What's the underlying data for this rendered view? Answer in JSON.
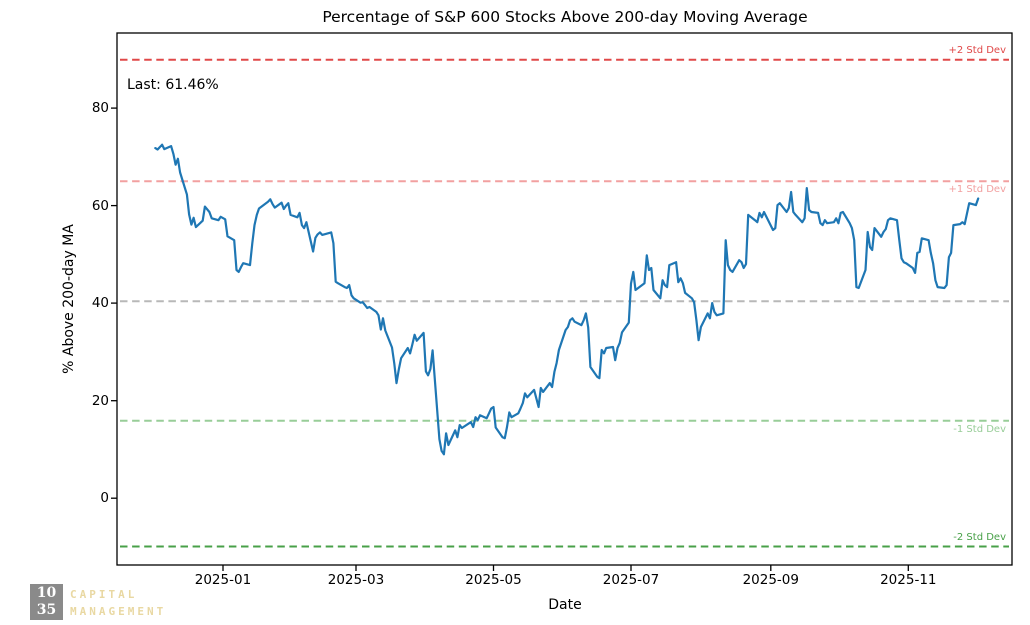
{
  "annotations": {
    "last_label": "Last: 61.46%"
  },
  "logo": {
    "box_line1": "10",
    "box_line2": "35",
    "line1": "CAPITAL",
    "line2": "MANAGEMENT",
    "box_color": "#8a8a8a",
    "text_color": "#e9d8a2"
  },
  "chart_data": {
    "type": "line",
    "title": "Percentage of S&P 600 Stocks Above 200-day Moving Average",
    "xlabel": "Date",
    "ylabel": "% Above 200-day MA",
    "grid": false,
    "legend": "none",
    "line_color": "#1f77b4",
    "last_value": 61.46,
    "xlim": [
      "2024-11-15",
      "2025-12-17"
    ],
    "ylim": [
      -13.7,
      95.4
    ],
    "x_ticks": [
      {
        "label": "2025-01",
        "date": "2025-01-01"
      },
      {
        "label": "2025-03",
        "date": "2025-03-01"
      },
      {
        "label": "2025-05",
        "date": "2025-05-01"
      },
      {
        "label": "2025-07",
        "date": "2025-07-01"
      },
      {
        "label": "2025-09",
        "date": "2025-09-01"
      },
      {
        "label": "2025-11",
        "date": "2025-11-01"
      }
    ],
    "y_ticks": [
      0,
      20,
      40,
      60,
      80
    ],
    "std_lines": [
      {
        "label": "+2 Std Dev",
        "value": 89.9,
        "color": "#e04848",
        "label_side": "above"
      },
      {
        "label": "+1 Std Dev",
        "value": 65.0,
        "color": "#f2a0a0",
        "label_side": "below"
      },
      {
        "label": "",
        "value": 40.4,
        "color": "#b8b8b8",
        "label_side": "none"
      },
      {
        "label": "-1 Std Dev",
        "value": 15.9,
        "color": "#98cd98",
        "label_side": "below"
      },
      {
        "label": "-2 Std Dev",
        "value": -9.9,
        "color": "#48a048",
        "label_side": "above"
      }
    ],
    "series": [
      {
        "name": "% Above 200-day MA",
        "points": [
          [
            "2024-12-02",
            71.8
          ],
          [
            "2024-12-03",
            71.5
          ],
          [
            "2024-12-04",
            72.0
          ],
          [
            "2024-12-05",
            72.5
          ],
          [
            "2024-12-06",
            71.6
          ],
          [
            "2024-12-09",
            72.2
          ],
          [
            "2024-12-10",
            70.6
          ],
          [
            "2024-12-11",
            68.4
          ],
          [
            "2024-12-12",
            69.6
          ],
          [
            "2024-12-13",
            66.8
          ],
          [
            "2024-12-16",
            62.3
          ],
          [
            "2024-12-17",
            58.2
          ],
          [
            "2024-12-18",
            56.1
          ],
          [
            "2024-12-19",
            57.5
          ],
          [
            "2024-12-20",
            55.6
          ],
          [
            "2024-12-23",
            56.9
          ],
          [
            "2024-12-24",
            59.8
          ],
          [
            "2024-12-26",
            58.7
          ],
          [
            "2024-12-27",
            57.4
          ],
          [
            "2024-12-30",
            57.0
          ],
          [
            "2024-12-31",
            57.7
          ],
          [
            "2025-01-02",
            57.2
          ],
          [
            "2025-01-03",
            53.7
          ],
          [
            "2025-01-06",
            52.9
          ],
          [
            "2025-01-07",
            46.8
          ],
          [
            "2025-01-08",
            46.4
          ],
          [
            "2025-01-09",
            47.4
          ],
          [
            "2025-01-10",
            48.2
          ],
          [
            "2025-01-13",
            47.8
          ],
          [
            "2025-01-14",
            52.3
          ],
          [
            "2025-01-15",
            56.0
          ],
          [
            "2025-01-16",
            58.1
          ],
          [
            "2025-01-17",
            59.4
          ],
          [
            "2025-01-21",
            60.8
          ],
          [
            "2025-01-22",
            61.3
          ],
          [
            "2025-01-23",
            60.3
          ],
          [
            "2025-01-24",
            59.6
          ],
          [
            "2025-01-27",
            60.6
          ],
          [
            "2025-01-28",
            59.3
          ],
          [
            "2025-01-29",
            60.0
          ],
          [
            "2025-01-30",
            60.5
          ],
          [
            "2025-01-31",
            58.1
          ],
          [
            "2025-02-03",
            57.6
          ],
          [
            "2025-02-04",
            58.5
          ],
          [
            "2025-02-05",
            56.0
          ],
          [
            "2025-02-06",
            55.4
          ],
          [
            "2025-02-07",
            56.6
          ],
          [
            "2025-02-10",
            50.6
          ],
          [
            "2025-02-11",
            53.4
          ],
          [
            "2025-02-12",
            54.1
          ],
          [
            "2025-02-13",
            54.5
          ],
          [
            "2025-02-14",
            54.0
          ],
          [
            "2025-02-18",
            54.5
          ],
          [
            "2025-02-19",
            52.3
          ],
          [
            "2025-02-20",
            44.4
          ],
          [
            "2025-02-21",
            44.1
          ],
          [
            "2025-02-24",
            43.3
          ],
          [
            "2025-02-25",
            43.1
          ],
          [
            "2025-02-26",
            43.7
          ],
          [
            "2025-02-27",
            41.6
          ],
          [
            "2025-02-28",
            41.0
          ],
          [
            "2025-03-03",
            40.1
          ],
          [
            "2025-03-04",
            40.2
          ],
          [
            "2025-03-05",
            39.6
          ],
          [
            "2025-03-06",
            39.0
          ],
          [
            "2025-03-07",
            39.2
          ],
          [
            "2025-03-10",
            38.2
          ],
          [
            "2025-03-11",
            37.5
          ],
          [
            "2025-03-12",
            34.6
          ],
          [
            "2025-03-13",
            36.9
          ],
          [
            "2025-03-14",
            34.4
          ],
          [
            "2025-03-17",
            30.9
          ],
          [
            "2025-03-18",
            27.6
          ],
          [
            "2025-03-19",
            23.6
          ],
          [
            "2025-03-20",
            26.4
          ],
          [
            "2025-03-21",
            28.7
          ],
          [
            "2025-03-24",
            30.8
          ],
          [
            "2025-03-25",
            29.7
          ],
          [
            "2025-03-26",
            31.5
          ],
          [
            "2025-03-27",
            33.5
          ],
          [
            "2025-03-28",
            32.3
          ],
          [
            "2025-03-31",
            33.9
          ],
          [
            "2025-04-01",
            26.0
          ],
          [
            "2025-04-02",
            25.2
          ],
          [
            "2025-04-03",
            26.5
          ],
          [
            "2025-04-04",
            30.3
          ],
          [
            "2025-04-07",
            12.1
          ],
          [
            "2025-04-08",
            9.7
          ],
          [
            "2025-04-09",
            9.0
          ],
          [
            "2025-04-10",
            13.3
          ],
          [
            "2025-04-11",
            10.9
          ],
          [
            "2025-04-14",
            13.9
          ],
          [
            "2025-04-15",
            12.5
          ],
          [
            "2025-04-16",
            15.0
          ],
          [
            "2025-04-17",
            14.4
          ],
          [
            "2025-04-21",
            15.6
          ],
          [
            "2025-04-22",
            14.6
          ],
          [
            "2025-04-23",
            16.6
          ],
          [
            "2025-04-24",
            16.0
          ],
          [
            "2025-04-25",
            17.0
          ],
          [
            "2025-04-28",
            16.4
          ],
          [
            "2025-04-29",
            17.4
          ],
          [
            "2025-04-30",
            18.4
          ],
          [
            "2025-05-01",
            18.7
          ],
          [
            "2025-05-02",
            14.5
          ],
          [
            "2025-05-05",
            12.5
          ],
          [
            "2025-05-06",
            12.3
          ],
          [
            "2025-05-07",
            14.6
          ],
          [
            "2025-05-08",
            17.6
          ],
          [
            "2025-05-09",
            16.6
          ],
          [
            "2025-05-12",
            17.4
          ],
          [
            "2025-05-13",
            18.4
          ],
          [
            "2025-05-14",
            19.5
          ],
          [
            "2025-05-15",
            21.5
          ],
          [
            "2025-05-16",
            20.7
          ],
          [
            "2025-05-19",
            22.2
          ],
          [
            "2025-05-20",
            20.5
          ],
          [
            "2025-05-21",
            18.7
          ],
          [
            "2025-05-22",
            22.6
          ],
          [
            "2025-05-23",
            21.8
          ],
          [
            "2025-05-26",
            23.6
          ],
          [
            "2025-05-27",
            22.8
          ],
          [
            "2025-05-28",
            25.9
          ],
          [
            "2025-05-29",
            27.7
          ],
          [
            "2025-05-30",
            30.4
          ],
          [
            "2025-06-02",
            34.5
          ],
          [
            "2025-06-03",
            35.1
          ],
          [
            "2025-06-04",
            36.5
          ],
          [
            "2025-06-05",
            36.9
          ],
          [
            "2025-06-06",
            36.2
          ],
          [
            "2025-06-09",
            35.5
          ],
          [
            "2025-06-10",
            36.5
          ],
          [
            "2025-06-11",
            37.9
          ],
          [
            "2025-06-12",
            35.0
          ],
          [
            "2025-06-13",
            26.9
          ],
          [
            "2025-06-16",
            24.9
          ],
          [
            "2025-06-17",
            24.6
          ],
          [
            "2025-06-18",
            30.4
          ],
          [
            "2025-06-19",
            29.7
          ],
          [
            "2025-06-20",
            30.8
          ],
          [
            "2025-06-23",
            31.0
          ],
          [
            "2025-06-24",
            28.3
          ],
          [
            "2025-06-25",
            30.8
          ],
          [
            "2025-06-26",
            31.8
          ],
          [
            "2025-06-27",
            34.0
          ],
          [
            "2025-06-30",
            36.0
          ],
          [
            "2025-07-01",
            44.0
          ],
          [
            "2025-07-02",
            46.4
          ],
          [
            "2025-07-03",
            42.7
          ],
          [
            "2025-07-07",
            44.1
          ],
          [
            "2025-07-08",
            49.8
          ],
          [
            "2025-07-09",
            46.8
          ],
          [
            "2025-07-10",
            47.2
          ],
          [
            "2025-07-11",
            42.7
          ],
          [
            "2025-07-14",
            41.0
          ],
          [
            "2025-07-15",
            44.7
          ],
          [
            "2025-07-16",
            43.7
          ],
          [
            "2025-07-17",
            43.3
          ],
          [
            "2025-07-18",
            47.8
          ],
          [
            "2025-07-21",
            48.4
          ],
          [
            "2025-07-22",
            44.3
          ],
          [
            "2025-07-23",
            45.1
          ],
          [
            "2025-07-24",
            44.1
          ],
          [
            "2025-07-25",
            42.1
          ],
          [
            "2025-07-28",
            41.0
          ],
          [
            "2025-07-29",
            40.2
          ],
          [
            "2025-07-30",
            36.5
          ],
          [
            "2025-07-31",
            32.4
          ],
          [
            "2025-08-01",
            35.1
          ],
          [
            "2025-08-04",
            37.9
          ],
          [
            "2025-08-05",
            36.9
          ],
          [
            "2025-08-06",
            40.0
          ],
          [
            "2025-08-07",
            38.2
          ],
          [
            "2025-08-08",
            37.5
          ],
          [
            "2025-08-11",
            37.9
          ],
          [
            "2025-08-12",
            52.9
          ],
          [
            "2025-08-13",
            47.8
          ],
          [
            "2025-08-14",
            46.8
          ],
          [
            "2025-08-15",
            46.4
          ],
          [
            "2025-08-18",
            48.8
          ],
          [
            "2025-08-19",
            48.4
          ],
          [
            "2025-08-20",
            47.2
          ],
          [
            "2025-08-21",
            48.0
          ],
          [
            "2025-08-22",
            58.1
          ],
          [
            "2025-08-25",
            57.0
          ],
          [
            "2025-08-26",
            56.6
          ],
          [
            "2025-08-27",
            58.5
          ],
          [
            "2025-08-28",
            57.6
          ],
          [
            "2025-08-29",
            58.7
          ],
          [
            "2025-09-02",
            55.0
          ],
          [
            "2025-09-03",
            55.4
          ],
          [
            "2025-09-04",
            60.1
          ],
          [
            "2025-09-05",
            60.5
          ],
          [
            "2025-09-08",
            58.7
          ],
          [
            "2025-09-09",
            59.5
          ],
          [
            "2025-09-10",
            62.8
          ],
          [
            "2025-09-11",
            58.7
          ],
          [
            "2025-09-12",
            58.1
          ],
          [
            "2025-09-15",
            56.6
          ],
          [
            "2025-09-16",
            57.4
          ],
          [
            "2025-09-17",
            63.6
          ],
          [
            "2025-09-18",
            59.1
          ],
          [
            "2025-09-19",
            58.7
          ],
          [
            "2025-09-22",
            58.5
          ],
          [
            "2025-09-23",
            56.4
          ],
          [
            "2025-09-24",
            56.0
          ],
          [
            "2025-09-25",
            57.0
          ],
          [
            "2025-09-26",
            56.4
          ],
          [
            "2025-09-29",
            56.6
          ],
          [
            "2025-09-30",
            57.4
          ],
          [
            "2025-10-01",
            56.4
          ],
          [
            "2025-10-02",
            58.5
          ],
          [
            "2025-10-03",
            58.7
          ],
          [
            "2025-10-06",
            56.4
          ],
          [
            "2025-10-07",
            55.4
          ],
          [
            "2025-10-08",
            52.9
          ],
          [
            "2025-10-09",
            43.3
          ],
          [
            "2025-10-10",
            43.1
          ],
          [
            "2025-10-13",
            46.8
          ],
          [
            "2025-10-14",
            54.6
          ],
          [
            "2025-10-15",
            51.5
          ],
          [
            "2025-10-16",
            50.9
          ],
          [
            "2025-10-17",
            55.4
          ],
          [
            "2025-10-20",
            53.6
          ],
          [
            "2025-10-21",
            54.6
          ],
          [
            "2025-10-22",
            55.2
          ],
          [
            "2025-10-23",
            57.0
          ],
          [
            "2025-10-24",
            57.4
          ],
          [
            "2025-10-27",
            57.0
          ],
          [
            "2025-10-28",
            52.9
          ],
          [
            "2025-10-29",
            49.2
          ],
          [
            "2025-10-30",
            48.4
          ],
          [
            "2025-10-31",
            48.2
          ],
          [
            "2025-11-03",
            47.2
          ],
          [
            "2025-11-04",
            46.2
          ],
          [
            "2025-11-05",
            50.3
          ],
          [
            "2025-11-06",
            50.5
          ],
          [
            "2025-11-07",
            53.3
          ],
          [
            "2025-11-10",
            52.9
          ],
          [
            "2025-11-11",
            50.3
          ],
          [
            "2025-11-12",
            48.2
          ],
          [
            "2025-11-13",
            44.7
          ],
          [
            "2025-11-14",
            43.3
          ],
          [
            "2025-11-17",
            43.1
          ],
          [
            "2025-11-18",
            43.7
          ],
          [
            "2025-11-19",
            49.4
          ],
          [
            "2025-11-20",
            50.3
          ],
          [
            "2025-11-21",
            56.0
          ],
          [
            "2025-11-24",
            56.2
          ],
          [
            "2025-11-25",
            56.6
          ],
          [
            "2025-11-26",
            56.2
          ],
          [
            "2025-11-28",
            60.5
          ],
          [
            "2025-12-01",
            60.1
          ],
          [
            "2025-12-02",
            61.46
          ]
        ]
      }
    ]
  }
}
